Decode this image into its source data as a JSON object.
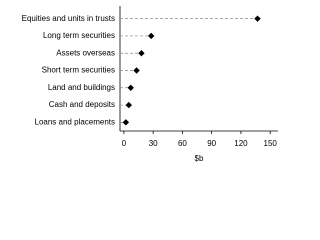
{
  "chart_data": {
    "type": "dot",
    "categories": [
      "Equities and units in trusts",
      "Long term securities",
      "Assets overseas",
      "Short term securities",
      "Land and buildings",
      "Cash and deposits",
      "Loans and placements"
    ],
    "values": [
      137,
      28,
      18,
      13,
      7,
      5,
      2
    ],
    "color": "#000000",
    "xlim": [
      -4,
      158
    ],
    "xticks": [
      0,
      30,
      60,
      90,
      120,
      150
    ],
    "xlabel": "$b"
  }
}
